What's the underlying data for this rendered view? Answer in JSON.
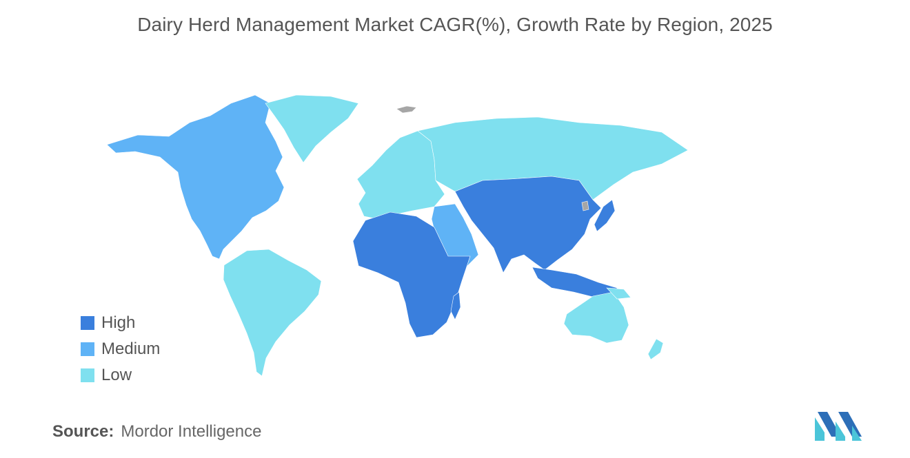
{
  "title": "Dairy Herd Management Market CAGR(%), Growth Rate by Region, 2025",
  "legend": [
    {
      "label": "High",
      "color": "#3a7fdd"
    },
    {
      "label": "Medium",
      "color": "#5fb3f6"
    },
    {
      "label": "Low",
      "color": "#7fe0ef"
    }
  ],
  "colors": {
    "high": "#3a7fdd",
    "medium": "#5fb3f6",
    "low": "#7fe0ef",
    "no_data": "#a6a6a6"
  },
  "regions": {
    "north_america": "medium",
    "greenland": "low",
    "south_america": "low",
    "europe": "low",
    "russia": "low",
    "middle_east": "medium",
    "africa": "high",
    "asia": "high",
    "southeast_asia": "high",
    "australia": "low",
    "new_zealand": "low"
  },
  "source": {
    "label": "Source:",
    "value": "Mordor Intelligence"
  }
}
